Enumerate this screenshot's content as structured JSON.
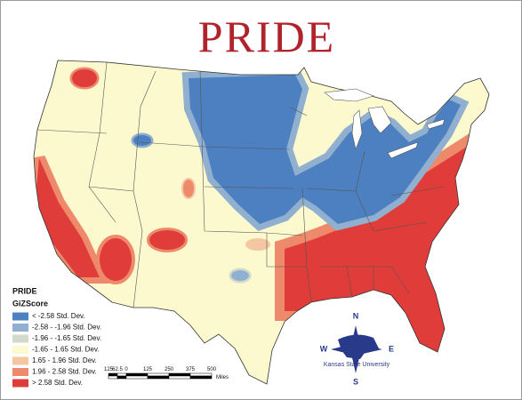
{
  "title": "PRIDE",
  "legend": {
    "layer": "PRIDE",
    "field": "GiZScore",
    "classes": [
      {
        "label": "< -2.58 Std. Dev.",
        "color": "#4c80c0"
      },
      {
        "label": "-2.58 - -1.96 Std. Dev.",
        "color": "#91b0cf"
      },
      {
        "label": "-1.96 - -1.65 Std. Dev.",
        "color": "#d3dacb"
      },
      {
        "label": "-1.65 - 1.65 Std. Dev.",
        "color": "#fcf9cf"
      },
      {
        "label": "1.65 - 1.96 Std. Dev.",
        "color": "#f5c6a2"
      },
      {
        "label": "1.96 - 2.58 Std. Dev.",
        "color": "#ee8a6c"
      },
      {
        "label": "> 2.58 Std. Dev.",
        "color": "#e03c3a"
      }
    ]
  },
  "scale_bar": {
    "labels": [
      "125",
      "62.5",
      "0",
      "125",
      "250",
      "375",
      "500"
    ],
    "unit": "Miles"
  },
  "compass": {
    "north": "N",
    "east": "E",
    "south": "S",
    "west": "W"
  },
  "logo": "Kansas State University"
}
